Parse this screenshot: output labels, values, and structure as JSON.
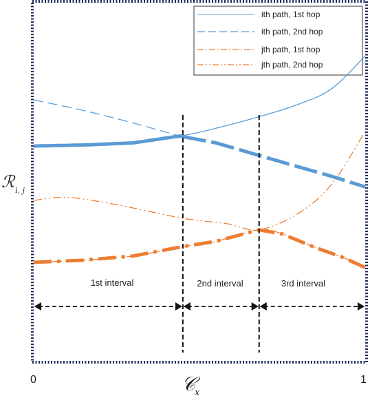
{
  "chart_data": {
    "type": "line",
    "xlabel": "𝒞",
    "xlabel_sub": "x",
    "ylabel": "ℛ",
    "ylabel_sub": "i, j",
    "xlim": [
      0,
      1
    ],
    "x_ticks": [
      "0",
      "1"
    ],
    "legend_position": "top-right",
    "grid": false,
    "boundaries": [
      0.45,
      0.68
    ],
    "intervals": [
      {
        "label": "1st interval",
        "from": 0,
        "to": 0.45
      },
      {
        "label": "2nd interval",
        "from": 0.45,
        "to": 0.68
      },
      {
        "label": "3rd interval",
        "from": 0.68,
        "to": 1
      }
    ],
    "series": [
      {
        "name": "ith path, 1st hop",
        "color": "#5b9bd5",
        "style": "solid",
        "points": [
          [
            0,
            0.7
          ],
          [
            0.15,
            0.705
          ],
          [
            0.3,
            0.715
          ],
          [
            0.45,
            0.75
          ],
          [
            0.55,
            0.785
          ],
          [
            0.68,
            0.84
          ],
          [
            0.8,
            0.9
          ],
          [
            0.9,
            0.975
          ],
          [
            1.0,
            1.13
          ]
        ]
      },
      {
        "name": "ith path, 2nd hop",
        "color": "#5b9bd5",
        "style": "dashed",
        "points": [
          [
            0,
            0.92
          ],
          [
            0.15,
            0.87
          ],
          [
            0.3,
            0.81
          ],
          [
            0.45,
            0.745
          ],
          [
            0.55,
            0.715
          ],
          [
            0.68,
            0.655
          ],
          [
            0.8,
            0.6
          ],
          [
            0.9,
            0.555
          ],
          [
            1.0,
            0.505
          ]
        ]
      },
      {
        "name": "jth path, 1st hop",
        "color": "#ed7d31",
        "style": "dashdot",
        "points": [
          [
            0,
            0.145
          ],
          [
            0.15,
            0.155
          ],
          [
            0.3,
            0.175
          ],
          [
            0.45,
            0.22
          ],
          [
            0.55,
            0.245
          ],
          [
            0.68,
            0.3
          ],
          [
            0.75,
            0.28
          ],
          [
            0.85,
            0.215
          ],
          [
            0.93,
            0.17
          ],
          [
            1.0,
            0.12
          ]
        ]
      },
      {
        "name": "jth path, 2nd hop",
        "color": "#ed7d31",
        "style": "dashdotdot",
        "points": [
          [
            0,
            0.44
          ],
          [
            0.1,
            0.455
          ],
          [
            0.25,
            0.42
          ],
          [
            0.45,
            0.355
          ],
          [
            0.58,
            0.33
          ],
          [
            0.68,
            0.3
          ],
          [
            0.8,
            0.38
          ],
          [
            0.9,
            0.52
          ],
          [
            1.0,
            0.77
          ]
        ]
      }
    ]
  }
}
